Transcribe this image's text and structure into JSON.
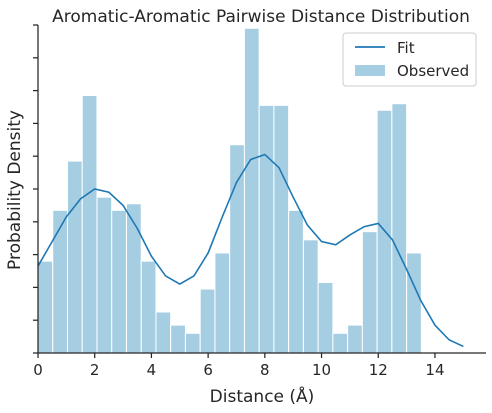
{
  "chart_data": {
    "type": "bar",
    "title": "Aromatic-Aromatic Pairwise Distance Distribution",
    "xlabel": "Distance (Å)",
    "ylabel": "Probability Density",
    "xlim": [
      0,
      15.8
    ],
    "ylim": [
      0,
      0.2
    ],
    "x_ticks": [
      0,
      2,
      4,
      6,
      8,
      10,
      12,
      14
    ],
    "y_ticks": [
      0,
      0.02,
      0.04,
      0.06,
      0.08,
      0.1,
      0.12,
      0.14,
      0.16,
      0.18,
      0.2
    ],
    "y_tick_labels_shown": false,
    "grid": false,
    "legend_position": "top-right",
    "bar_color": "#a6cee3",
    "line_color": "#1f78b4",
    "series": [
      {
        "name": "Observed",
        "kind": "histogram",
        "bin_width": 0.52,
        "bin_edges_start": 0,
        "values": [
          0.056,
          0.087,
          0.117,
          0.157,
          0.095,
          0.087,
          0.091,
          0.056,
          0.025,
          0.017,
          0.012,
          0.039,
          0.061,
          0.127,
          0.198,
          0.151,
          0.151,
          0.087,
          0.069,
          0.043,
          0.012,
          0.017,
          0.074,
          0.148,
          0.152,
          0.061
        ]
      },
      {
        "name": "Fit",
        "kind": "line",
        "x": [
          0,
          0.5,
          1,
          1.5,
          2,
          2.5,
          3,
          3.5,
          4,
          4.5,
          5,
          5.5,
          6,
          6.5,
          7,
          7.5,
          8,
          8.5,
          9,
          9.5,
          10,
          10.5,
          11,
          11.5,
          12,
          12.5,
          13,
          13.5,
          14,
          14.5,
          15
        ],
        "y": [
          0.053,
          0.068,
          0.083,
          0.094,
          0.1,
          0.098,
          0.09,
          0.076,
          0.059,
          0.047,
          0.042,
          0.047,
          0.061,
          0.083,
          0.104,
          0.118,
          0.121,
          0.113,
          0.095,
          0.078,
          0.068,
          0.066,
          0.072,
          0.077,
          0.079,
          0.069,
          0.051,
          0.032,
          0.017,
          0.008,
          0.004
        ]
      }
    ]
  }
}
